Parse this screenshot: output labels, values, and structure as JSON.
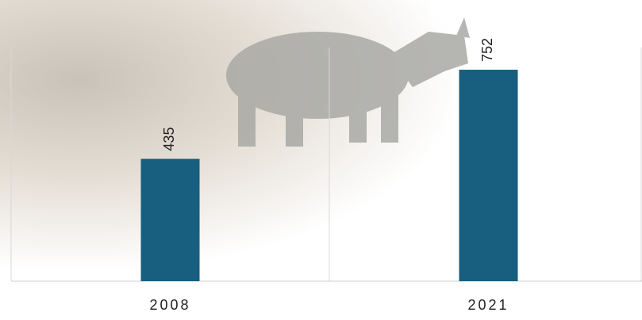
{
  "chart_data": {
    "type": "bar",
    "categories": [
      "2008",
      "2021"
    ],
    "values": [
      435,
      752
    ],
    "color": "#175e7f",
    "ylim": [
      0,
      1000
    ],
    "grid": true
  }
}
